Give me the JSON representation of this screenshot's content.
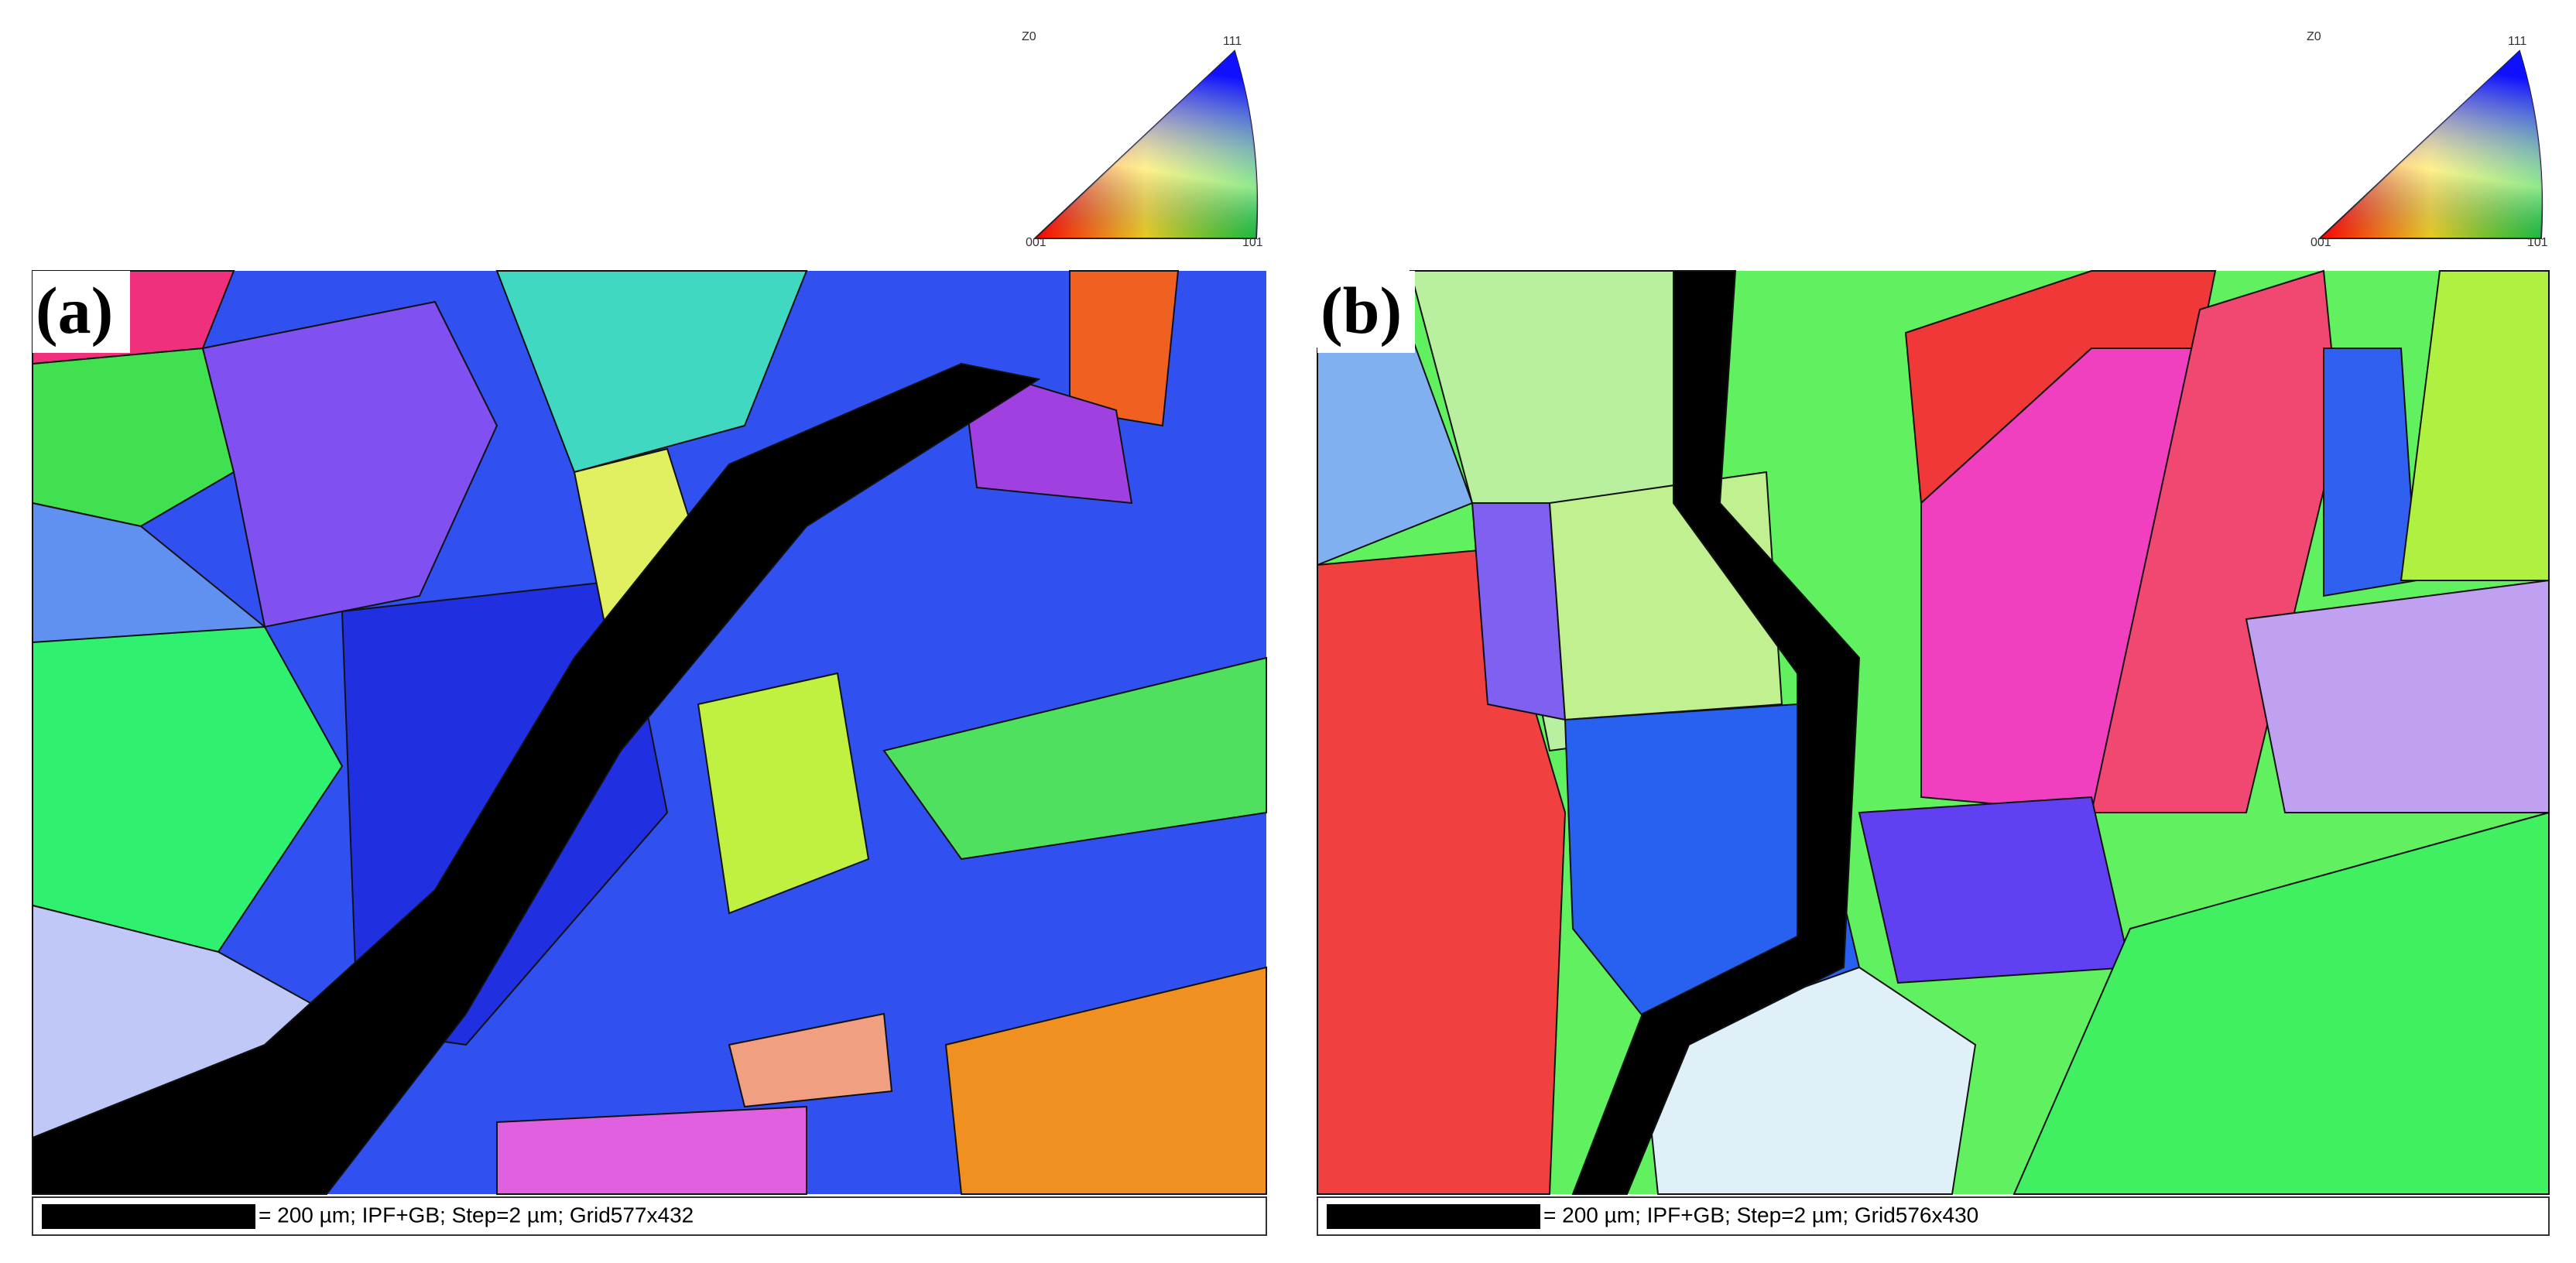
{
  "panels": [
    {
      "label": "(a)",
      "legend": {
        "frame": "Z0",
        "top": "111",
        "left": "001",
        "right": "101"
      },
      "scale_bar": "= 200 µm; IPF+GB; Step=2 µm; Grid577x432"
    },
    {
      "label": "(b)",
      "legend": {
        "frame": "Z0",
        "top": "111",
        "left": "001",
        "right": "101"
      },
      "scale_bar": "= 200 µm; IPF+GB; Step=2 µm; Grid576x430"
    }
  ]
}
